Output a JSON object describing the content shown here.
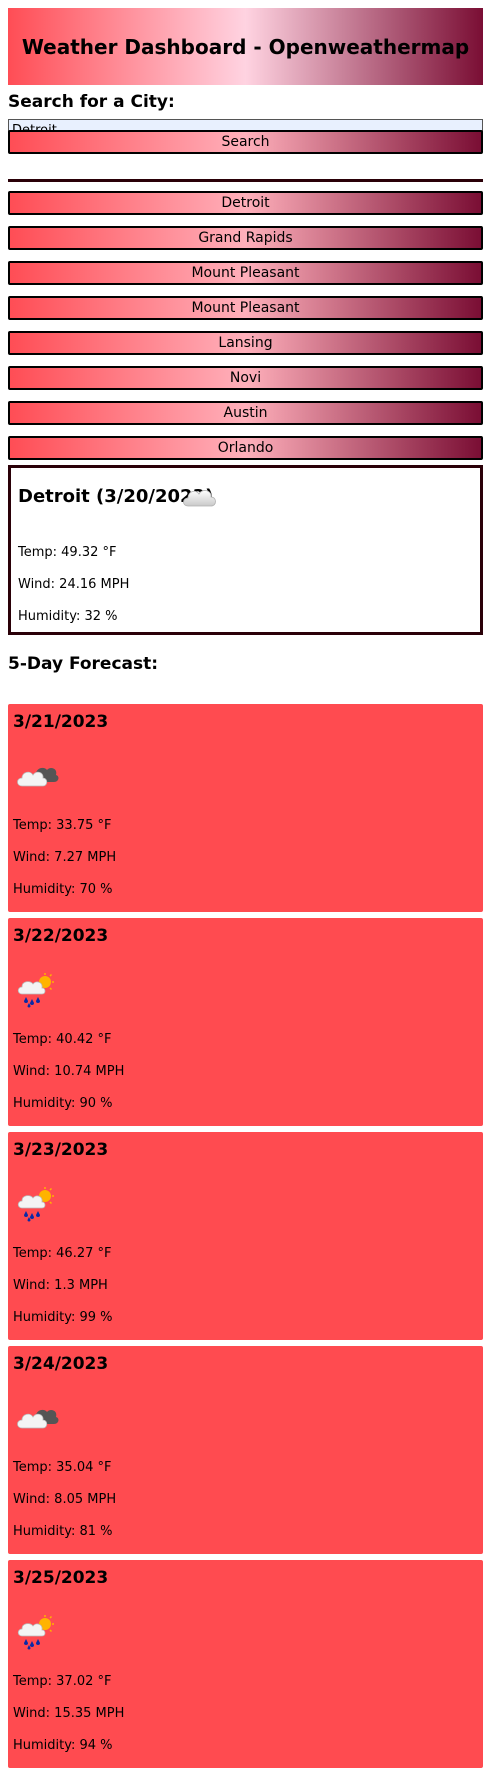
{
  "header": {
    "title": "Weather Dashboard - Openweathermap"
  },
  "search": {
    "label": "Search for a City:",
    "value": "Detroit",
    "button_label": "Search"
  },
  "history": [
    {
      "label": "Detroit"
    },
    {
      "label": "Grand Rapids"
    },
    {
      "label": "Mount Pleasant"
    },
    {
      "label": "Mount Pleasant"
    },
    {
      "label": "Lansing"
    },
    {
      "label": "Novi"
    },
    {
      "label": "Austin"
    },
    {
      "label": "Orlando"
    }
  ],
  "current": {
    "title": "Detroit (3/20/2023)",
    "icon": "cloud-icon",
    "temp": "Temp: 49.32 °F",
    "wind": "Wind: 24.16 MPH",
    "humidity": "Humidity: 32 %"
  },
  "forecast": {
    "title": "5-Day Forecast:",
    "days": [
      {
        "date": "3/21/2023",
        "icon": "partly-cloudy-icon",
        "temp": "Temp: 33.75 °F",
        "wind": "Wind: 7.27 MPH",
        "humidity": "Humidity: 70 %"
      },
      {
        "date": "3/22/2023",
        "icon": "sun-rain-icon",
        "temp": "Temp: 40.42 °F",
        "wind": "Wind: 10.74 MPH",
        "humidity": "Humidity: 90 %"
      },
      {
        "date": "3/23/2023",
        "icon": "sun-rain-icon",
        "temp": "Temp: 46.27 °F",
        "wind": "Wind: 1.3 MPH",
        "humidity": "Humidity: 99 %"
      },
      {
        "date": "3/24/2023",
        "icon": "partly-cloudy-icon",
        "temp": "Temp: 35.04 °F",
        "wind": "Wind: 8.05 MPH",
        "humidity": "Humidity: 81 %"
      },
      {
        "date": "3/25/2023",
        "icon": "sun-rain-icon",
        "temp": "Temp: 37.02 °F",
        "wind": "Wind: 15.35 MPH",
        "humidity": "Humidity: 94 %"
      }
    ]
  },
  "colors": {
    "accent_red": "#ff4b50",
    "gradient_light": "#ffd3e1",
    "gradient_dark": "#7a0e34",
    "border_dark": "#2a0008"
  }
}
